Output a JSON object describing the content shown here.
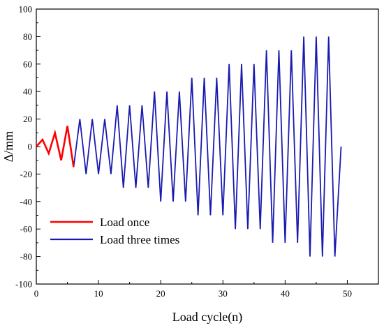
{
  "chart_data": {
    "type": "line",
    "title": "",
    "xlabel": "Load cycle(n)",
    "ylabel": "Δ/mm",
    "xlim": [
      0,
      55
    ],
    "ylim": [
      -100,
      100
    ],
    "xticks": [
      0,
      10,
      20,
      30,
      40,
      50
    ],
    "yticks": [
      100,
      80,
      60,
      40,
      20,
      0,
      -20,
      -40,
      -60,
      -80,
      -100
    ],
    "grid": false,
    "legend_position": "lower-left",
    "series": [
      {
        "name": "Load once",
        "color": "#ff0000",
        "x": [
          0,
          1,
          2,
          3,
          4,
          5,
          6
        ],
        "y": [
          0,
          5,
          -5,
          10,
          -10,
          15,
          -15
        ]
      },
      {
        "name": "Load three times",
        "color": "#1a1ab0",
        "x": [
          6,
          7,
          8,
          9,
          10,
          11,
          12,
          13,
          14,
          15,
          16,
          17,
          18,
          19,
          20,
          21,
          22,
          23,
          24,
          25,
          26,
          27,
          28,
          29,
          30,
          31,
          32,
          33,
          34,
          35,
          36,
          37,
          38,
          39,
          40,
          41,
          42,
          43,
          44,
          45,
          46,
          47,
          48,
          49
        ],
        "y": [
          -15,
          20,
          -20,
          20,
          -20,
          20,
          -20,
          30,
          -30,
          30,
          -30,
          30,
          -30,
          40,
          -40,
          40,
          -40,
          40,
          -40,
          50,
          -50,
          50,
          -50,
          50,
          -50,
          60,
          -60,
          60,
          -60,
          60,
          -60,
          70,
          -70,
          70,
          -70,
          70,
          -70,
          80,
          -80,
          80,
          -80,
          80,
          -80,
          0
        ]
      }
    ]
  }
}
